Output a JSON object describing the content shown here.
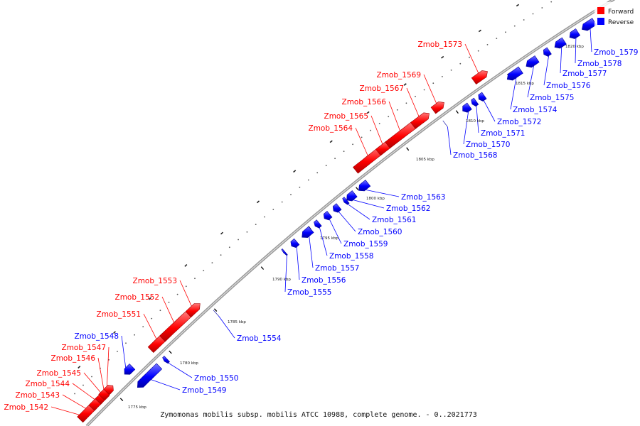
{
  "caption": "Zymomonas mobilis subsp. mobilis ATCC 10988, complete genome. - 0..2021773",
  "legend": {
    "forward": {
      "label": "Forward",
      "color": "#ff0000"
    },
    "reverse": {
      "label": "Reverse",
      "color": "#0000ff"
    }
  },
  "ticks": [
    "1775 kbp",
    "1780 kbp",
    "1785 kbp",
    "1790 kbp",
    "1795 kbp",
    "1800 kbp",
    "1805 kbp",
    "1810 kbp",
    "1815 kbp",
    "1820 kbp"
  ],
  "genes": [
    {
      "name": "Zmob_1542",
      "strand": "forward"
    },
    {
      "name": "Zmob_1543",
      "strand": "forward"
    },
    {
      "name": "Zmob_1544",
      "strand": "forward"
    },
    {
      "name": "Zmob_1545",
      "strand": "forward"
    },
    {
      "name": "Zmob_1546",
      "strand": "forward"
    },
    {
      "name": "Zmob_1547",
      "strand": "forward"
    },
    {
      "name": "Zmob_1548",
      "strand": "reverse"
    },
    {
      "name": "Zmob_1549",
      "strand": "reverse"
    },
    {
      "name": "Zmob_1550",
      "strand": "reverse"
    },
    {
      "name": "Zmob_1551",
      "strand": "forward"
    },
    {
      "name": "Zmob_1552",
      "strand": "forward"
    },
    {
      "name": "Zmob_1553",
      "strand": "forward"
    },
    {
      "name": "Zmob_1554",
      "strand": "reverse"
    },
    {
      "name": "Zmob_1555",
      "strand": "reverse"
    },
    {
      "name": "Zmob_1556",
      "strand": "reverse"
    },
    {
      "name": "Zmob_1557",
      "strand": "reverse"
    },
    {
      "name": "Zmob_1558",
      "strand": "reverse"
    },
    {
      "name": "Zmob_1559",
      "strand": "reverse"
    },
    {
      "name": "Zmob_1560",
      "strand": "reverse"
    },
    {
      "name": "Zmob_1561",
      "strand": "reverse"
    },
    {
      "name": "Zmob_1562",
      "strand": "reverse"
    },
    {
      "name": "Zmob_1563",
      "strand": "reverse"
    },
    {
      "name": "Zmob_1564",
      "strand": "forward"
    },
    {
      "name": "Zmob_1565",
      "strand": "forward"
    },
    {
      "name": "Zmob_1566",
      "strand": "forward"
    },
    {
      "name": "Zmob_1567",
      "strand": "forward"
    },
    {
      "name": "Zmob_1568",
      "strand": "reverse"
    },
    {
      "name": "Zmob_1569",
      "strand": "forward"
    },
    {
      "name": "Zmob_1570",
      "strand": "reverse"
    },
    {
      "name": "Zmob_1571",
      "strand": "reverse"
    },
    {
      "name": "Zmob_1572",
      "strand": "reverse"
    },
    {
      "name": "Zmob_1573",
      "strand": "forward"
    },
    {
      "name": "Zmob_1574",
      "strand": "reverse"
    },
    {
      "name": "Zmob_1575",
      "strand": "reverse"
    },
    {
      "name": "Zmob_1576",
      "strand": "reverse"
    },
    {
      "name": "Zmob_1577",
      "strand": "reverse"
    },
    {
      "name": "Zmob_1578",
      "strand": "reverse"
    },
    {
      "name": "Zmob_1579",
      "strand": "reverse"
    }
  ]
}
